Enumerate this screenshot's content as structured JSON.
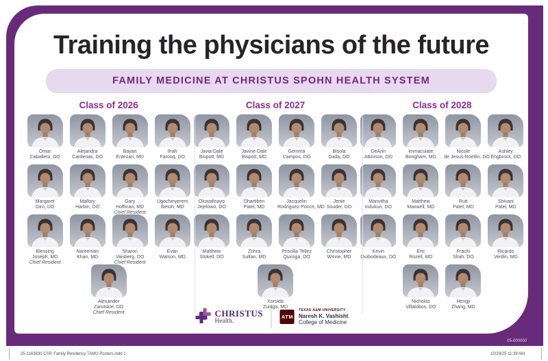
{
  "title": "Training the physicians of the future",
  "banner": "FAMILY MEDICINE AT CHRISTUS SPOHN HEALTH SYSTEM",
  "colors": {
    "frame_purple": "#682B7C",
    "banner_bg": "#E7D9EE",
    "banner_text": "#7A2383",
    "class_heading": "#8D2A8F",
    "tamu_maroon": "#500000"
  },
  "classes": [
    {
      "label": "Class of 2026",
      "rows": [
        [
          {
            "first": "Omar",
            "last": "Caballero, DO"
          },
          {
            "first": "Alejandra",
            "last": "Cardenas, DO"
          },
          {
            "first": "Bayan",
            "last": "Entezari, MD"
          },
          {
            "first": "Ifrah",
            "last": "Farooq, DO"
          }
        ],
        [
          {
            "first": "Margaret",
            "last": "Giro, DO"
          },
          {
            "first": "Mallory",
            "last": "Harbin, DO"
          },
          {
            "first": "Gary",
            "last": "Hoffman, MD",
            "role": "Chief Resident"
          },
          {
            "first": "Ugochinyerem",
            "last": "Ibetoh, MD"
          }
        ],
        [
          {
            "first": "Blessing",
            "last": "Joseph, MD",
            "role": "Chief Resident"
          },
          {
            "first": "Nareeman",
            "last": "Khan, MD"
          },
          {
            "first": "Sharon",
            "last": "Vaisberg, DO",
            "role": "Chief Resident"
          },
          {
            "first": "Evan",
            "last": "Watson, MD"
          }
        ],
        [
          {
            "first": "Alexander",
            "last": "Zarutskie, DO",
            "role": "Chief Resident"
          }
        ]
      ]
    },
    {
      "label": "Class of 2027",
      "rows": [
        [
          {
            "first": "Javia-Dale",
            "last": "Bispott, MD"
          },
          {
            "first": "Javine-Dale",
            "last": "Bispott, MD"
          },
          {
            "first": "Gemma",
            "last": "Campos, DO"
          },
          {
            "first": "Bisola",
            "last": "Dada, DO"
          }
        ],
        [
          {
            "first": "Oluwafisayo",
            "last": "Jejelowo, DO"
          },
          {
            "first": "Dhartiben",
            "last": "Patel, MD"
          },
          {
            "first": "Jacquelin",
            "last": "Rodriguez-Ponce, MD"
          },
          {
            "first": "Jenie",
            "last": "Souder, DO"
          }
        ],
        [
          {
            "first": "Matthew",
            "last": "Stokell, DO"
          },
          {
            "first": "Zohra",
            "last": "Sultan, MD"
          },
          {
            "first": "Priscilla Tellez",
            "last": "Quiroga, DO"
          },
          {
            "first": "Christopher",
            "last": "Winne, MD"
          }
        ],
        [
          {
            "first": "Xorsida",
            "last": "Zuniga, MD"
          }
        ]
      ]
    },
    {
      "label": "Class of 2028",
      "rows": [
        [
          {
            "first": "DeAnn",
            "last": "Atkinson, DO"
          },
          {
            "first": "Immaculate",
            "last": "Bongham, MD"
          },
          {
            "first": "Nicole",
            "last": "de Jesus-Roetlin, DO"
          },
          {
            "first": "Ashley",
            "last": "Engbrock, DO"
          }
        ],
        [
          {
            "first": "Manvitha",
            "last": "Indukuri, DO"
          },
          {
            "first": "Matthew",
            "last": "Maxwell, MD"
          },
          {
            "first": "Rutt",
            "last": "Patel, MD"
          },
          {
            "first": "Shivani",
            "last": "Patel, MD"
          }
        ],
        [
          {
            "first": "Kevin",
            "last": "Quibodeaux, DO"
          },
          {
            "first": "Eric",
            "last": "Rozell, MD"
          },
          {
            "first": "Prachi",
            "last": "Shah, DO"
          },
          {
            "first": "Ricardo",
            "last": "Verdin, MD"
          }
        ],
        [
          {
            "first": "Nicholas",
            "last": "Villalobos, DO"
          },
          {
            "first": "Hengji",
            "last": "Zhang, MD"
          }
        ]
      ]
    }
  ],
  "footer": {
    "christus": {
      "word": "CHRISTUS",
      "sub": "Health."
    },
    "tamu": {
      "monogram": "ATM",
      "university": "TEXAS A&M UNIVERSITY",
      "name": "Naresh K. Vashisht",
      "college": "College of Medicine"
    },
    "plate_code": "05-000000"
  },
  "slug": {
    "left": "25-1163830 CSP, Family Residency TAMU Posters.indd   1",
    "right": "10/29/25   11:39 AM"
  }
}
